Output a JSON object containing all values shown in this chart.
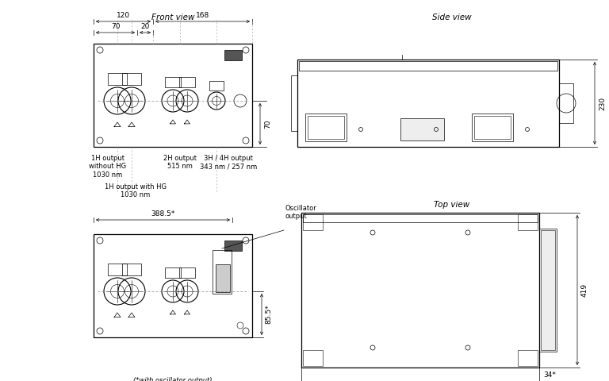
{
  "title_front": "Front view",
  "title_side": "Side view",
  "title_top": "Top view",
  "bg_color": "#ffffff",
  "line_color": "#000000",
  "font_size_label": 6.0,
  "font_size_title": 7.5,
  "font_size_dim": 6.5
}
